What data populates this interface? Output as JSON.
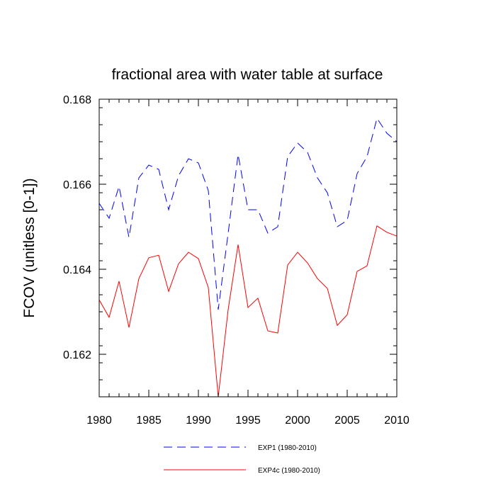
{
  "chart_data": {
    "type": "line",
    "title": "fractional area with water table at surface",
    "xlabel": "",
    "ylabel": "FCOV  (unitless [0-1])",
    "xlim": [
      1980,
      2010
    ],
    "ylim": [
      0.161,
      0.168
    ],
    "xticks": [
      1980,
      1985,
      1990,
      1995,
      2000,
      2005,
      2010
    ],
    "xtick_labels": [
      "1980",
      "1985",
      "1990",
      "1995",
      "2000",
      "2005",
      "2010"
    ],
    "yticks": [
      0.162,
      0.164,
      0.166,
      0.168
    ],
    "ytick_labels": [
      "0.162",
      "0.164",
      "0.166",
      "0.168"
    ],
    "grid": false,
    "legend_position": "bottom-center",
    "x": [
      1980,
      1981,
      1982,
      1983,
      1984,
      1985,
      1986,
      1987,
      1988,
      1989,
      1990,
      1991,
      1992,
      1993,
      1994,
      1995,
      1996,
      1997,
      1998,
      1999,
      2000,
      2001,
      2002,
      2003,
      2004,
      2005,
      2006,
      2007,
      2008,
      2009,
      2010
    ],
    "series": [
      {
        "name": "EXP1 (1980-2010)",
        "color": "#0000ff",
        "style": "dashed",
        "values": [
          0.16555,
          0.1652,
          0.16595,
          0.16475,
          0.16615,
          0.16645,
          0.16635,
          0.1654,
          0.1662,
          0.1666,
          0.1665,
          0.16585,
          0.16305,
          0.16485,
          0.1667,
          0.1654,
          0.1654,
          0.16485,
          0.165,
          0.16665,
          0.16697,
          0.16675,
          0.16615,
          0.1658,
          0.165,
          0.16515,
          0.16625,
          0.16665,
          0.16755,
          0.1672,
          0.167
        ]
      },
      {
        "name": "EXP4c (1980-2010)",
        "color": "#ff0000",
        "style": "solid",
        "values": [
          0.16328,
          0.16287,
          0.16372,
          0.16263,
          0.16378,
          0.16427,
          0.16433,
          0.16348,
          0.16413,
          0.1644,
          0.16425,
          0.16357,
          0.161,
          0.16305,
          0.16458,
          0.1631,
          0.16332,
          0.16255,
          0.1625,
          0.1641,
          0.1644,
          0.16415,
          0.16378,
          0.16355,
          0.16268,
          0.16293,
          0.16395,
          0.16408,
          0.16502,
          0.16487,
          0.16478
        ]
      }
    ]
  }
}
